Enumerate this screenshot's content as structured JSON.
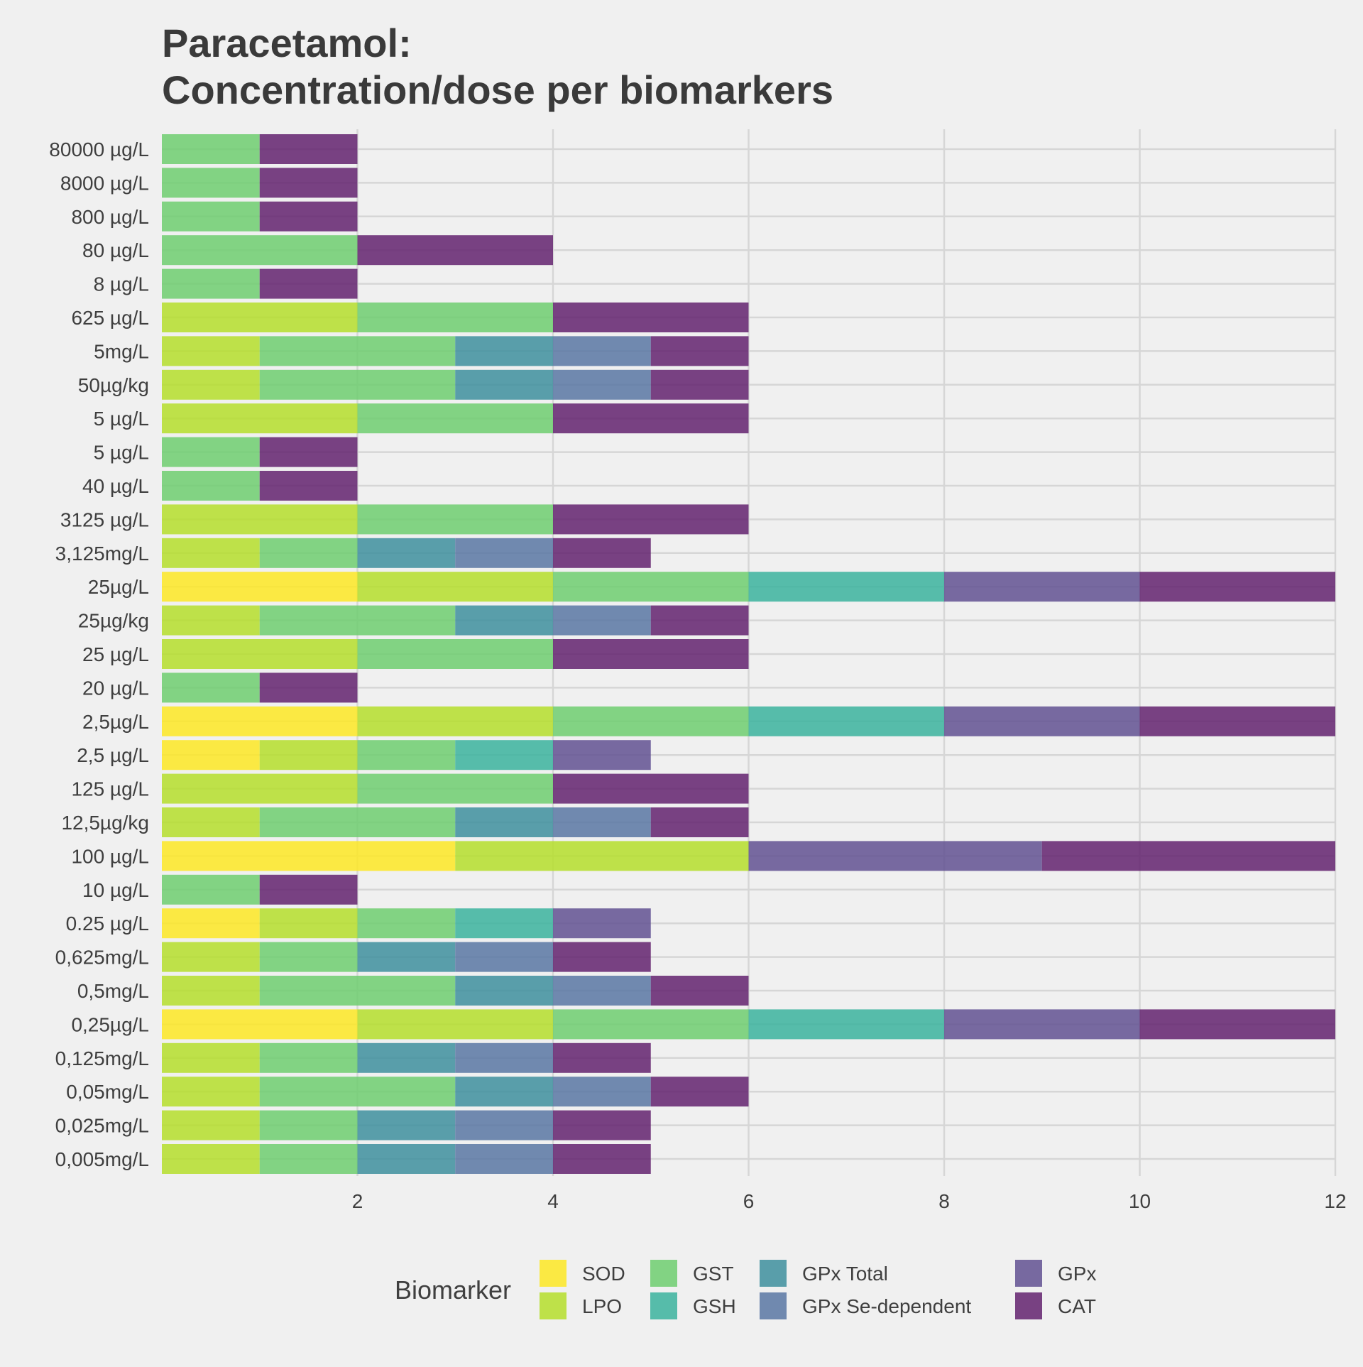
{
  "chart_data": {
    "type": "bar",
    "orientation": "horizontal",
    "stacked": true,
    "title_lines": [
      "Paracetamol:",
      "Concentration/dose per biomarkers"
    ],
    "xlabel": "",
    "ylabel": "",
    "xlim": [
      0,
      12
    ],
    "xticks": [
      2,
      4,
      6,
      8,
      10,
      12
    ],
    "grid": true,
    "legend_position": "bottom",
    "legend_title": "Biomarker",
    "series_order": [
      "SOD",
      "LPO",
      "GST",
      "GSH",
      "GPx Total",
      "GPx Se-dependent",
      "GPx",
      "CAT"
    ],
    "colors": {
      "SOD": "#fde725",
      "LPO": "#b5de2b",
      "GST": "#6ece70",
      "GSH": "#3bb39d",
      "GPx Total": "#3e8f9e",
      "GPx Se-dependent": "#5977a3",
      "GPx": "#625192",
      "CAT": "#63226e"
    },
    "categories": [
      "80000  µg/L",
      "8000  µg/L",
      "800  µg/L",
      "80  µg/L",
      "8  µg/L",
      "625 µg/L",
      "5mg/L",
      "50µg/kg",
      "5 µg/L",
      "5  µg/L",
      "40  µg/L",
      "3125 µg/L",
      "3,125mg/L",
      "25µg/L",
      "25µg/kg",
      "25 µg/L",
      "20  µg/L",
      "2,5µg/L",
      "2,5 µg/L",
      "125 µg/L",
      "12,5µg/kg",
      "100 µg/L",
      "10  µg/L",
      "0.25 µg/L",
      "0,625mg/L",
      "0,5mg/L",
      "0,25µg/L",
      "0,125mg/L",
      "0,05mg/L",
      "0,025mg/L",
      "0,005mg/L"
    ],
    "series": [
      {
        "name": "SOD",
        "values": [
          0,
          0,
          0,
          0,
          0,
          0,
          0,
          0,
          0,
          0,
          0,
          0,
          0,
          2,
          0,
          0,
          0,
          2,
          1,
          0,
          0,
          3,
          0,
          1,
          0,
          0,
          2,
          0,
          0,
          0,
          0
        ]
      },
      {
        "name": "LPO",
        "values": [
          0,
          0,
          0,
          0,
          0,
          2,
          1,
          1,
          2,
          0,
          0,
          2,
          1,
          2,
          1,
          2,
          0,
          2,
          1,
          2,
          1,
          3,
          0,
          1,
          1,
          1,
          2,
          1,
          1,
          1,
          1
        ]
      },
      {
        "name": "GST",
        "values": [
          1,
          1,
          1,
          2,
          1,
          2,
          2,
          2,
          2,
          1,
          1,
          2,
          1,
          2,
          2,
          2,
          1,
          2,
          1,
          2,
          2,
          0,
          1,
          1,
          1,
          2,
          2,
          1,
          2,
          1,
          1
        ]
      },
      {
        "name": "GSH",
        "values": [
          0,
          0,
          0,
          0,
          0,
          0,
          0,
          0,
          0,
          0,
          0,
          0,
          0,
          2,
          0,
          0,
          0,
          2,
          1,
          0,
          0,
          0,
          0,
          1,
          0,
          0,
          2,
          0,
          0,
          0,
          0
        ]
      },
      {
        "name": "GPx Total",
        "values": [
          0,
          0,
          0,
          0,
          0,
          0,
          1,
          1,
          0,
          0,
          0,
          0,
          1,
          0,
          1,
          0,
          0,
          0,
          0,
          0,
          1,
          0,
          0,
          0,
          1,
          1,
          0,
          1,
          1,
          1,
          1
        ]
      },
      {
        "name": "GPx Se-dependent",
        "values": [
          0,
          0,
          0,
          0,
          0,
          0,
          1,
          1,
          0,
          0,
          0,
          0,
          1,
          0,
          1,
          0,
          0,
          0,
          0,
          0,
          1,
          0,
          0,
          0,
          1,
          1,
          0,
          1,
          1,
          1,
          1
        ]
      },
      {
        "name": "GPx",
        "values": [
          0,
          0,
          0,
          0,
          0,
          0,
          0,
          0,
          0,
          0,
          0,
          0,
          0,
          2,
          0,
          0,
          0,
          2,
          1,
          0,
          0,
          3,
          0,
          1,
          0,
          0,
          2,
          0,
          0,
          0,
          0
        ]
      },
      {
        "name": "CAT",
        "values": [
          1,
          1,
          1,
          2,
          1,
          2,
          1,
          1,
          2,
          1,
          1,
          2,
          1,
          2,
          1,
          2,
          1,
          2,
          0,
          2,
          1,
          3,
          1,
          0,
          1,
          1,
          2,
          1,
          1,
          1,
          1
        ]
      }
    ]
  }
}
